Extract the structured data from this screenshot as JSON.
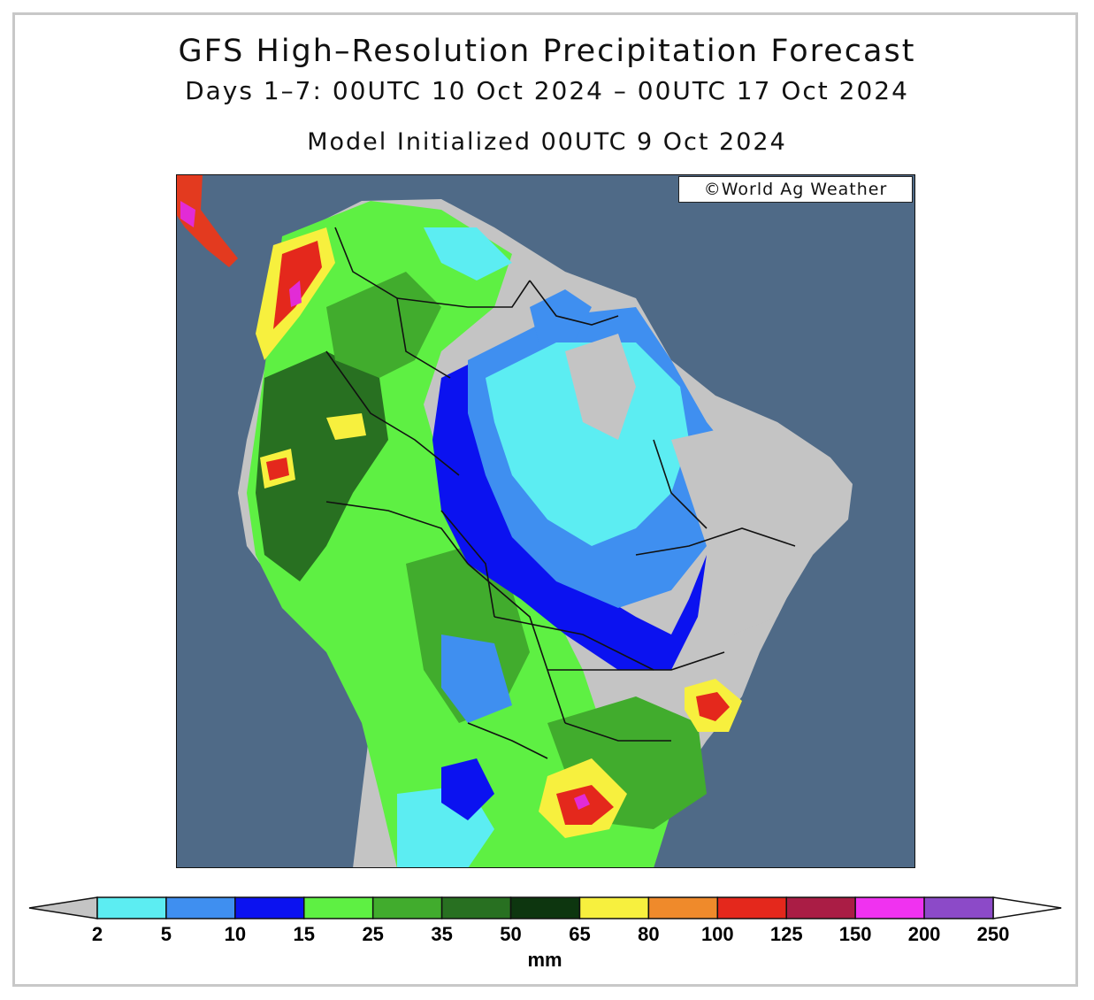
{
  "header": {
    "title": "GFS High–Resolution Precipitation Forecast",
    "subtitle": "Days 1–7: 00UTC 10 Oct 2024 – 00UTC 17 Oct 2024",
    "init": "Model Initialized 00UTC 9 Oct 2024"
  },
  "map": {
    "credit": "©World Ag Weather",
    "ocean_color": "#4f6a87",
    "land_color": "#c4c4c4"
  },
  "colorbar": {
    "unit": "mm",
    "labels": [
      "2",
      "5",
      "10",
      "15",
      "25",
      "35",
      "50",
      "65",
      "80",
      "100",
      "125",
      "150",
      "200",
      "250"
    ],
    "below_color": "#c4c4c4",
    "above_color": "#ffffff",
    "colors": [
      "#5cedf2",
      "#3f8ff0",
      "#0b12f0",
      "#5ef043",
      "#41ac2d",
      "#287021",
      "#0d360f",
      "#f7f03e",
      "#ef8a2b",
      "#e4281c",
      "#aa1d45",
      "#f032f0",
      "#8c4ac8"
    ]
  }
}
